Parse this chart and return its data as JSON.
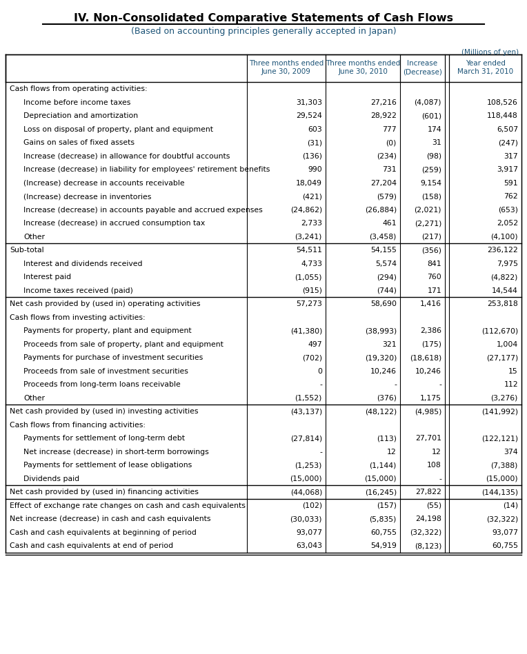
{
  "title": "IV. Non-Consolidated Comparative Statements of Cash Flows",
  "subtitle": "(Based on accounting principles generally accepted in Japan)",
  "unit_label": "(Millions of yen)",
  "col_headers": [
    [
      "Three months ended",
      "June 30, 2009"
    ],
    [
      "Three months ended",
      "June 30, 2010"
    ],
    [
      "Increase",
      "(Decrease)"
    ],
    [
      "Year ended",
      "March 31, 2010"
    ]
  ],
  "rows": [
    {
      "label": "Cash flows from operating activities:",
      "indent": 0,
      "values": [
        "",
        "",
        "",
        ""
      ],
      "section_header": true
    },
    {
      "label": "Income before income taxes",
      "indent": 1,
      "values": [
        "31,303",
        "27,216",
        "(4,087)",
        "108,526"
      ]
    },
    {
      "label": "Depreciation and amortization",
      "indent": 1,
      "values": [
        "29,524",
        "28,922",
        "(601)",
        "118,448"
      ]
    },
    {
      "label": "Loss on disposal of property, plant and equipment",
      "indent": 1,
      "values": [
        "603",
        "777",
        "174",
        "6,507"
      ]
    },
    {
      "label": "Gains on sales of fixed assets",
      "indent": 1,
      "values": [
        "(31)",
        "(0)",
        "31",
        "(247)"
      ]
    },
    {
      "label": "Increase (decrease) in allowance for doubtful accounts",
      "indent": 1,
      "values": [
        "(136)",
        "(234)",
        "(98)",
        "317"
      ]
    },
    {
      "label": "Increase (decrease) in liability for employees' retirement benefits",
      "indent": 1,
      "values": [
        "990",
        "731",
        "(259)",
        "3,917"
      ]
    },
    {
      "label": "(Increase) decrease in accounts receivable",
      "indent": 1,
      "values": [
        "18,049",
        "27,204",
        "9,154",
        "591"
      ]
    },
    {
      "label": "(Increase) decrease in inventories",
      "indent": 1,
      "values": [
        "(421)",
        "(579)",
        "(158)",
        "762"
      ]
    },
    {
      "label": "Increase (decrease) in accounts payable and accrued expenses",
      "indent": 1,
      "values": [
        "(24,862)",
        "(26,884)",
        "(2,021)",
        "(653)"
      ]
    },
    {
      "label": "Increase (decrease) in accrued consumption tax",
      "indent": 1,
      "values": [
        "2,733",
        "461",
        "(2,271)",
        "2,052"
      ]
    },
    {
      "label": "Other",
      "indent": 1,
      "values": [
        "(3,241)",
        "(3,458)",
        "(217)",
        "(4,100)"
      ]
    },
    {
      "label": "Sub-total",
      "indent": 0,
      "values": [
        "54,511",
        "54,155",
        "(356)",
        "236,122"
      ],
      "top_border": true
    },
    {
      "label": "Interest and dividends received",
      "indent": 1,
      "values": [
        "4,733",
        "5,574",
        "841",
        "7,975"
      ]
    },
    {
      "label": "Interest paid",
      "indent": 1,
      "values": [
        "(1,055)",
        "(294)",
        "760",
        "(4,822)"
      ]
    },
    {
      "label": "Income taxes received (paid)",
      "indent": 1,
      "values": [
        "(915)",
        "(744)",
        "171",
        "14,544"
      ]
    },
    {
      "label": "Net cash provided by (used in) operating activities",
      "indent": 0,
      "values": [
        "57,273",
        "58,690",
        "1,416",
        "253,818"
      ],
      "top_border": true
    },
    {
      "label": "Cash flows from investing activities:",
      "indent": 0,
      "values": [
        "",
        "",
        "",
        ""
      ],
      "section_header": true
    },
    {
      "label": "Payments for property, plant and equipment",
      "indent": 1,
      "values": [
        "(41,380)",
        "(38,993)",
        "2,386",
        "(112,670)"
      ]
    },
    {
      "label": "Proceeds from sale of property, plant and equipment",
      "indent": 1,
      "values": [
        "497",
        "321",
        "(175)",
        "1,004"
      ]
    },
    {
      "label": "Payments for purchase of investment securities",
      "indent": 1,
      "values": [
        "(702)",
        "(19,320)",
        "(18,618)",
        "(27,177)"
      ]
    },
    {
      "label": "Proceeds from sale of investment securities",
      "indent": 1,
      "values": [
        "0",
        "10,246",
        "10,246",
        "15"
      ]
    },
    {
      "label": "Proceeds from long-term loans receivable",
      "indent": 1,
      "values": [
        "-",
        "-",
        "-",
        "112"
      ]
    },
    {
      "label": "Other",
      "indent": 1,
      "values": [
        "(1,552)",
        "(376)",
        "1,175",
        "(3,276)"
      ]
    },
    {
      "label": "Net cash provided by (used in) investing activities",
      "indent": 0,
      "values": [
        "(43,137)",
        "(48,122)",
        "(4,985)",
        "(141,992)"
      ],
      "top_border": true
    },
    {
      "label": "Cash flows from financing activities:",
      "indent": 0,
      "values": [
        "",
        "",
        "",
        ""
      ],
      "section_header": true
    },
    {
      "label": "Payments for settlement of long-term debt",
      "indent": 1,
      "values": [
        "(27,814)",
        "(113)",
        "27,701",
        "(122,121)"
      ]
    },
    {
      "label": "Net increase (decrease) in short-term borrowings",
      "indent": 1,
      "values": [
        "-",
        "12",
        "12",
        "374"
      ]
    },
    {
      "label": "Payments for settlement of lease obligations",
      "indent": 1,
      "values": [
        "(1,253)",
        "(1,144)",
        "108",
        "(7,388)"
      ]
    },
    {
      "label": "Dividends paid",
      "indent": 1,
      "values": [
        "(15,000)",
        "(15,000)",
        "-",
        "(15,000)"
      ]
    },
    {
      "label": "Net cash provided by (used in) financing activities",
      "indent": 0,
      "values": [
        "(44,068)",
        "(16,245)",
        "27,822",
        "(144,135)"
      ],
      "top_border": true
    },
    {
      "label": "Effect of exchange rate changes on cash and cash equivalents",
      "indent": 0,
      "values": [
        "(102)",
        "(157)",
        "(55)",
        "(14)"
      ],
      "top_border": true
    },
    {
      "label": "Net increase (decrease) in cash and cash equivalents",
      "indent": 0,
      "values": [
        "(30,033)",
        "(5,835)",
        "24,198",
        "(32,322)"
      ]
    },
    {
      "label": "Cash and cash equivalents at beginning of period",
      "indent": 0,
      "values": [
        "93,077",
        "60,755",
        "(32,322)",
        "93,077"
      ]
    },
    {
      "label": "Cash and cash equivalents at end of period",
      "indent": 0,
      "values": [
        "63,043",
        "54,919",
        "(8,123)",
        "60,755"
      ],
      "bottom_double_border": true
    }
  ],
  "bg_color": "#ffffff",
  "text_color": "#000000",
  "header_text_color": "#1a5276",
  "title_color": "#000000"
}
